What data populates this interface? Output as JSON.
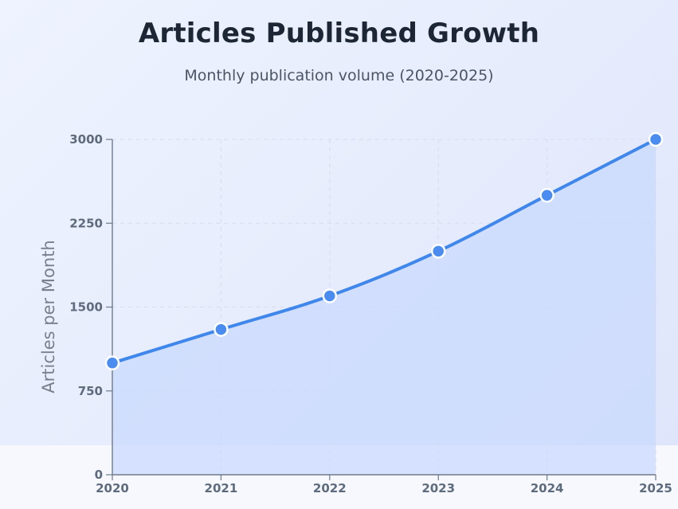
{
  "title": "Articles Published Growth",
  "subtitle": "Monthly publication volume (2020-2025)",
  "colors": {
    "line": "#3f87ea",
    "area": "#c9dafd",
    "point_fill": "#4a8cf0",
    "point_stroke": "#ffffff",
    "axis": "#6e7b8c",
    "grid": "#d5ddef"
  },
  "chart_data": {
    "type": "area",
    "title": "Articles Published Growth",
    "subtitle": "Monthly publication volume (2020-2025)",
    "xlabel": "",
    "ylabel": "Articles per Month",
    "x": [
      "2020",
      "2021",
      "2022",
      "2023",
      "2024",
      "2025"
    ],
    "series": [
      {
        "values": [
          1000,
          1300,
          1600,
          2000,
          2500,
          3000
        ]
      }
    ],
    "ylim": [
      0,
      3000
    ],
    "yticks": [
      0,
      750,
      1500,
      2250,
      3000
    ],
    "grid": true,
    "smooth": true,
    "markers": true
  }
}
